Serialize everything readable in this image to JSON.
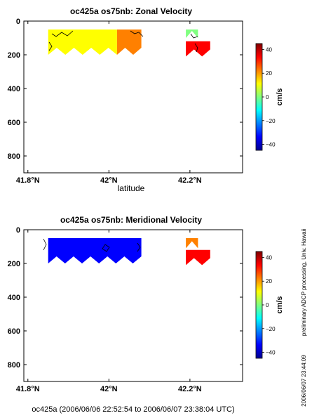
{
  "side_note": "preliminary ADCP processing,   Univ. Hawaii",
  "timestamp": "2006/06/07 23:44:09",
  "footer": "oc425a (2006/06/06 22:52:54 to 2006/06/07 23:38:04 UTC)",
  "colormap": [
    "#00008f",
    "#0000ff",
    "#0080ff",
    "#00ffff",
    "#80ff80",
    "#ffff00",
    "#ff8000",
    "#ff0000",
    "#800000"
  ],
  "chart_data": [
    {
      "type": "heatmap",
      "title": "oc425a os75nb: Zonal Velocity",
      "xlabel": "latitude",
      "ylabel": "",
      "x_ticks": [
        41.8,
        42.0,
        42.2
      ],
      "x_tick_labels": [
        "41.8°N",
        "42°N",
        "42.2°N"
      ],
      "xlim": [
        41.79,
        42.33
      ],
      "y_ticks": [
        0,
        200,
        400,
        600,
        800
      ],
      "y_tick_labels": [
        "0",
        "200",
        "400",
        "600",
        "800"
      ],
      "ylim": [
        0,
        900
      ],
      "y_inverted": true,
      "colorbar": {
        "label": "cm/s",
        "range": [
          -45,
          45
        ],
        "ticks": [
          40,
          20,
          0,
          -20,
          -40
        ],
        "tick_labels": [
          "40",
          "20",
          "0",
          "−20",
          "−40"
        ]
      },
      "grid": false,
      "regions": [
        {
          "lat_min": 41.85,
          "lat_max": 42.02,
          "depth_min": 50,
          "depth_max": 200,
          "value": 8
        },
        {
          "lat_min": 42.02,
          "lat_max": 42.08,
          "depth_min": 50,
          "depth_max": 200,
          "value": 25
        },
        {
          "lat_min": 42.19,
          "lat_max": 42.22,
          "depth_min": 50,
          "depth_max": 100,
          "value": 2
        },
        {
          "lat_min": 42.19,
          "lat_max": 42.25,
          "depth_min": 120,
          "depth_max": 210,
          "value": 32
        }
      ]
    },
    {
      "type": "heatmap",
      "title": "oc425a os75nb: Meridional Velocity",
      "xlabel": "",
      "ylabel": "",
      "x_ticks": [
        41.8,
        42.0,
        42.2
      ],
      "x_tick_labels": [
        "41.8°N",
        "42°N",
        "42.2°N"
      ],
      "xlim": [
        41.79,
        42.33
      ],
      "y_ticks": [
        0,
        200,
        400,
        600,
        800
      ],
      "y_tick_labels": [
        "0",
        "200",
        "400",
        "600",
        "800"
      ],
      "ylim": [
        0,
        900
      ],
      "y_inverted": true,
      "colorbar": {
        "label": "cm/s",
        "range": [
          -45,
          45
        ],
        "ticks": [
          40,
          20,
          0,
          -20,
          -40
        ],
        "tick_labels": [
          "40",
          "20",
          "0",
          "−20",
          "−40"
        ]
      },
      "grid": false,
      "regions": [
        {
          "lat_min": 41.85,
          "lat_max": 42.08,
          "depth_min": 50,
          "depth_max": 200,
          "value": -33
        },
        {
          "lat_min": 42.19,
          "lat_max": 42.22,
          "depth_min": 50,
          "depth_max": 110,
          "value": 28
        },
        {
          "lat_min": 42.19,
          "lat_max": 42.25,
          "depth_min": 120,
          "depth_max": 210,
          "value": 30
        }
      ]
    }
  ]
}
